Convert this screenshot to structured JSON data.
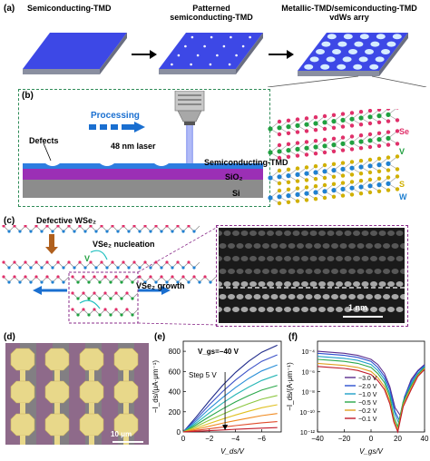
{
  "panels": {
    "a": {
      "label": "(a)",
      "titles": [
        "Semiconducting-TMD",
        "Patterned\nsemiconducting-TMD",
        "Metallic-TMD/semiconducting-TMD\nvdWs arry"
      ]
    },
    "b": {
      "label": "(b)",
      "processing": "Processing",
      "laser": "48 nm laser",
      "defects": "Defects",
      "layers": [
        "Semiconducting-TMD",
        "SiO₂",
        "Si"
      ],
      "atoms": [
        "Se",
        "V",
        "S",
        "W"
      ]
    },
    "c": {
      "label": "(c)",
      "defective": "Defective WSe₂",
      "nucleation": "VSe₂ nucleation",
      "growth": "VSe₂ growth",
      "v": "V",
      "scale": "1 nm"
    },
    "d": {
      "label": "(d)",
      "scale": "10 μm"
    },
    "e": {
      "label": "(e)"
    },
    "f": {
      "label": "(f)"
    }
  },
  "colors": {
    "green_dash": "#2e8b57",
    "purple_dash": "#8b2e8b",
    "substrate_blue": "#3b47e0"
  },
  "chart_data": [
    {
      "type": "line",
      "panel": "e",
      "xlabel": "V_ds/V",
      "ylabel": "−I_ds/(μA·μm⁻¹)",
      "xlim": [
        0,
        -7.5
      ],
      "ylim": [
        0,
        900
      ],
      "xticks": [
        0,
        -2,
        -4,
        -6
      ],
      "yticks": [
        0,
        200,
        400,
        600,
        800
      ],
      "annotations": [
        "V_gs=−40 V",
        "Step 5 V"
      ],
      "series": [
        {
          "x": [
            0,
            -1,
            -2,
            -3,
            -4,
            -5,
            -6,
            -7.2
          ],
          "y": [
            0,
            150,
            310,
            460,
            590,
            700,
            790,
            860
          ]
        },
        {
          "x": [
            0,
            -1,
            -2,
            -3,
            -4,
            -5,
            -6,
            -7.2
          ],
          "y": [
            0,
            130,
            270,
            400,
            515,
            615,
            700,
            765
          ]
        },
        {
          "x": [
            0,
            -1,
            -2,
            -3,
            -4,
            -5,
            -6,
            -7.2
          ],
          "y": [
            0,
            110,
            230,
            340,
            440,
            530,
            605,
            665
          ]
        },
        {
          "x": [
            0,
            -1,
            -2,
            -3,
            -4,
            -5,
            -6,
            -7.2
          ],
          "y": [
            0,
            90,
            190,
            285,
            370,
            445,
            510,
            565
          ]
        },
        {
          "x": [
            0,
            -1,
            -2,
            -3,
            -4,
            -5,
            -6,
            -7.2
          ],
          "y": [
            0,
            72,
            152,
            228,
            298,
            360,
            415,
            460
          ]
        },
        {
          "x": [
            0,
            -1,
            -2,
            -3,
            -4,
            -5,
            -6,
            -7.2
          ],
          "y": [
            0,
            55,
            117,
            175,
            230,
            280,
            325,
            362
          ]
        },
        {
          "x": [
            0,
            -1,
            -2,
            -3,
            -4,
            -5,
            -6,
            -7.2
          ],
          "y": [
            0,
            40,
            85,
            128,
            168,
            205,
            240,
            270
          ]
        },
        {
          "x": [
            0,
            -1,
            -2,
            -3,
            -4,
            -5,
            -6,
            -7.2
          ],
          "y": [
            0,
            27,
            57,
            86,
            113,
            138,
            162,
            183
          ]
        },
        {
          "x": [
            0,
            -1,
            -2,
            -3,
            -4,
            -5,
            -6,
            -7.2
          ],
          "y": [
            0,
            15,
            32,
            48,
            63,
            77,
            91,
            103
          ]
        },
        {
          "x": [
            0,
            -1,
            -2,
            -3,
            -4,
            -5,
            -6,
            -7.2
          ],
          "y": [
            0,
            6,
            13,
            20,
            26,
            32,
            38,
            43
          ]
        }
      ],
      "colors": [
        "#1f2a8a",
        "#3c52c8",
        "#2a8fd8",
        "#25b5b5",
        "#2aa84a",
        "#8cc63f",
        "#e0c020",
        "#f08a20",
        "#e04a2a",
        "#c01a2a"
      ]
    },
    {
      "type": "line",
      "panel": "f",
      "xlabel": "V_gs/V",
      "ylabel": "−I_ds/(A·μm⁻¹)",
      "xlim": [
        -40,
        40
      ],
      "ylim_log": [
        -12,
        -3
      ],
      "yscale": "log",
      "xticks": [
        -40,
        -20,
        0,
        20,
        40
      ],
      "yticks_labels": [
        "10⁻⁴",
        "10⁻⁶",
        "10⁻⁸",
        "10⁻¹⁰",
        "10⁻¹²"
      ],
      "yticks_exp": [
        -4,
        -6,
        -8,
        -10,
        -12
      ],
      "legend_position": "center",
      "series": [
        {
          "name": "−3.0 V",
          "color": "#5b2d8e",
          "x": [
            -40,
            -30,
            -20,
            -10,
            0,
            5,
            10,
            14,
            18,
            22,
            26,
            30,
            35,
            40
          ],
          "y": [
            -4.0,
            -4.1,
            -4.2,
            -4.4,
            -4.8,
            -5.3,
            -6.2,
            -7.5,
            -9.6,
            -10.4,
            -8.2,
            -6.8,
            -5.9,
            -5.3
          ]
        },
        {
          "name": "−2.0 V",
          "color": "#2a4fd0",
          "x": [
            -40,
            -30,
            -20,
            -10,
            0,
            5,
            10,
            14,
            18,
            21,
            25,
            30,
            35,
            40
          ],
          "y": [
            -4.2,
            -4.3,
            -4.4,
            -4.6,
            -5.0,
            -5.6,
            -6.5,
            -7.8,
            -10.0,
            -10.8,
            -8.5,
            -7.0,
            -6.0,
            -5.4
          ]
        },
        {
          "name": "−1.0 V",
          "color": "#1fa0c8",
          "x": [
            -40,
            -30,
            -20,
            -10,
            0,
            5,
            10,
            14,
            18,
            21,
            25,
            30,
            35,
            40
          ],
          "y": [
            -4.5,
            -4.6,
            -4.7,
            -4.9,
            -5.3,
            -5.9,
            -6.8,
            -8.2,
            -10.3,
            -11.2,
            -8.8,
            -7.2,
            -6.2,
            -5.5
          ]
        },
        {
          "name": "−0.5 V",
          "color": "#2aa84a",
          "x": [
            -40,
            -30,
            -20,
            -10,
            0,
            5,
            10,
            14,
            17,
            20,
            24,
            30,
            35,
            40
          ],
          "y": [
            -4.8,
            -4.9,
            -5.0,
            -5.2,
            -5.6,
            -6.2,
            -7.1,
            -8.5,
            -10.5,
            -11.5,
            -9.0,
            -7.4,
            -6.3,
            -5.6
          ]
        },
        {
          "name": "−0.2 V",
          "color": "#e0a020",
          "x": [
            -40,
            -30,
            -20,
            -10,
            0,
            5,
            10,
            14,
            17,
            20,
            24,
            30,
            35,
            40
          ],
          "y": [
            -5.2,
            -5.3,
            -5.4,
            -5.6,
            -6.0,
            -6.6,
            -7.5,
            -8.9,
            -10.8,
            -11.8,
            -9.3,
            -7.6,
            -6.4,
            -5.7
          ]
        },
        {
          "name": "−0.1 V",
          "color": "#c01a2a",
          "x": [
            -40,
            -30,
            -20,
            -10,
            0,
            5,
            10,
            14,
            17,
            20,
            24,
            30,
            35,
            40
          ],
          "y": [
            -5.5,
            -5.6,
            -5.7,
            -5.9,
            -6.3,
            -6.9,
            -7.8,
            -9.2,
            -11.0,
            -12.0,
            -9.5,
            -7.8,
            -6.5,
            -5.8
          ]
        }
      ]
    }
  ]
}
